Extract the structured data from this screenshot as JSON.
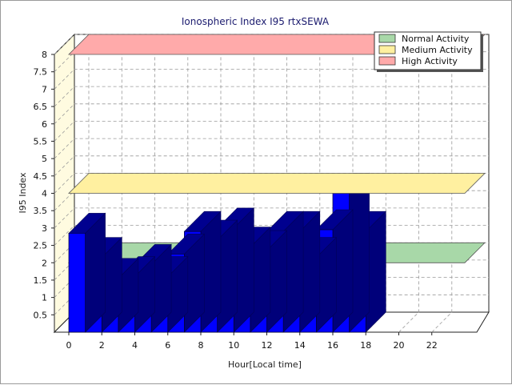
{
  "chart_data": {
    "type": "bar",
    "title": "Ionospheric Index I95 rtxSEWA",
    "xlabel": "Hour[Local time]",
    "ylabel": "I95 Index",
    "x": [
      0,
      1,
      2,
      3,
      4,
      5,
      6,
      7,
      8,
      9,
      10,
      11,
      12,
      13,
      14,
      15,
      16,
      17
    ],
    "values": [
      2.85,
      2.15,
      1.55,
      1.6,
      1.95,
      1.6,
      2.25,
      2.9,
      2.65,
      3.0,
      2.45,
      2.35,
      2.9,
      2.9,
      2.15,
      2.95,
      4.0,
      2.9
    ],
    "ylim": [
      0,
      8
    ],
    "xlim": [
      0,
      24
    ],
    "y_ticks": [
      "0.5",
      "1",
      "1.5",
      "2",
      "2.5",
      "3",
      "3.5",
      "4",
      "4.5",
      "5",
      "5.5",
      "6",
      "6.5",
      "7",
      "7.5",
      "8"
    ],
    "x_ticks": [
      "0",
      "2",
      "4",
      "6",
      "8",
      "10",
      "12",
      "14",
      "16",
      "18",
      "20",
      "22"
    ],
    "bands": [
      {
        "name": "Normal Activity",
        "value": 2,
        "color": "#a8d8a8"
      },
      {
        "name": "Medium Activity",
        "value": 4,
        "color": "#fff0a0"
      },
      {
        "name": "High Activity",
        "value": 8,
        "color": "#ffaaaa"
      }
    ],
    "bar_color": "#0000ff",
    "grid": true,
    "legend_position": "top-right"
  }
}
